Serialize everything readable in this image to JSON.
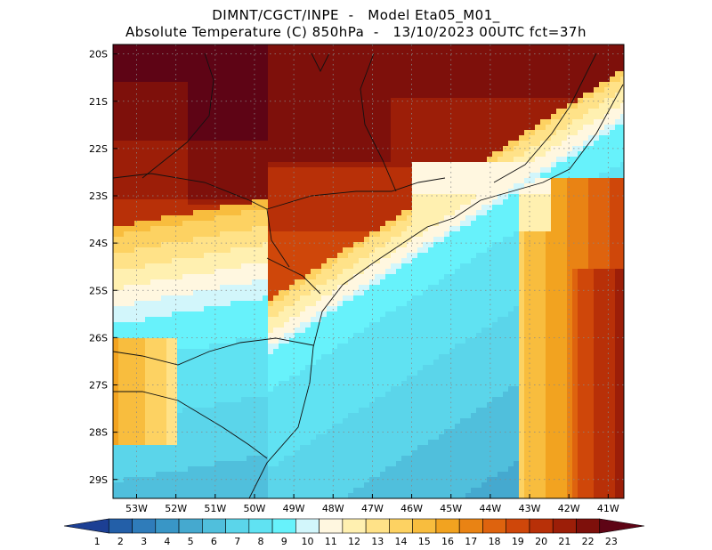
{
  "header": {
    "line1": "DIMNT/CGCT/INPE  -   Model Eta05_M01_",
    "line2": "Absolute Temperature (C) 850hPa  -   13/10/2023 00UTC fct=37h"
  },
  "axes": {
    "lat_labels": [
      "20S",
      "21S",
      "22S",
      "23S",
      "24S",
      "25S",
      "26S",
      "27S",
      "28S",
      "29S"
    ],
    "lon_labels": [
      "53W",
      "52W",
      "51W",
      "50W",
      "49W",
      "48W",
      "47W",
      "46W",
      "45W",
      "44W",
      "43W",
      "42W",
      "41W"
    ]
  },
  "colorbar": {
    "labels": [
      "1",
      "2",
      "3",
      "4",
      "5",
      "6",
      "7",
      "8",
      "9",
      "10",
      "11",
      "12",
      "13",
      "14",
      "15",
      "16",
      "17",
      "18",
      "19",
      "20",
      "21",
      "22",
      "23"
    ],
    "colors": [
      "#1c3f94",
      "#235fa8",
      "#2f7cba",
      "#3996c6",
      "#45a9cf",
      "#50bfdc",
      "#5bd5ea",
      "#60e2f2",
      "#67f2fb",
      "#d2f6fb",
      "#fff7e0",
      "#fff0b0",
      "#ffe288",
      "#fdd262",
      "#f8bd3e",
      "#f2a320",
      "#e98314",
      "#de630e",
      "#cf470a",
      "#b83008",
      "#9c1e08",
      "#7e100b",
      "#5e0415"
    ]
  },
  "map": {
    "lat_range": [
      -29.4,
      -19.8
    ],
    "lon_range": [
      -53.6,
      -40.6
    ],
    "grid": true,
    "field": "temperature 850hPa"
  }
}
